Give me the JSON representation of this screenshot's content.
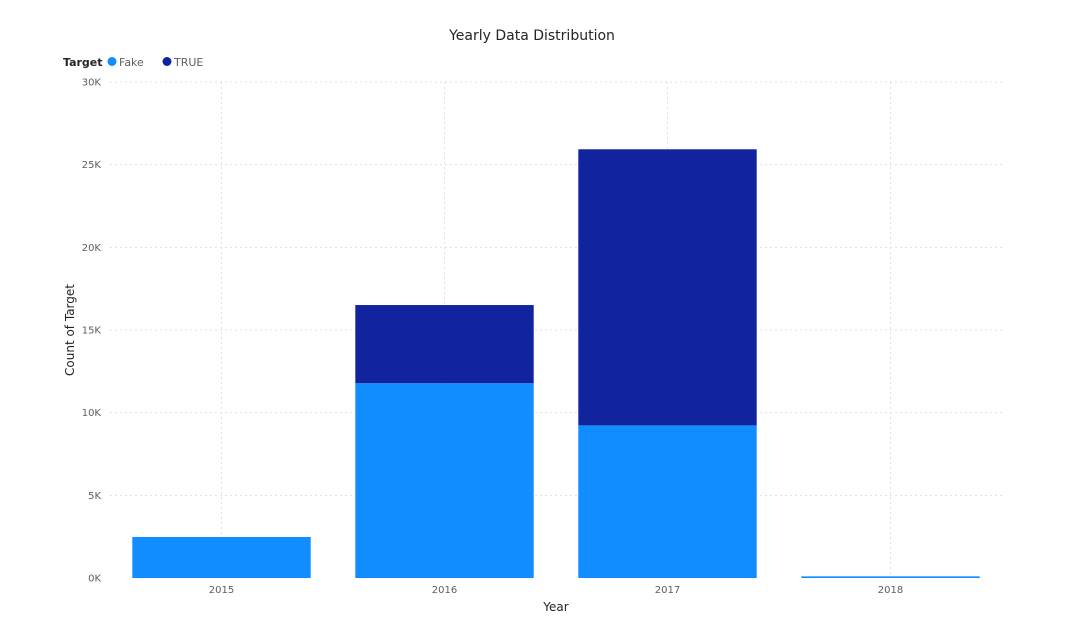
{
  "chart_data": {
    "type": "bar",
    "stacked": true,
    "title": "Yearly Data Distribution",
    "xlabel": "Year",
    "ylabel": "Count of Target",
    "legend_title": "Target",
    "legend_position": "top-left",
    "grid": true,
    "categories": [
      "2015",
      "2016",
      "2017",
      "2018"
    ],
    "ylim": [
      0,
      30000
    ],
    "yticks": [
      0,
      5000,
      10000,
      15000,
      20000,
      25000,
      30000
    ],
    "ytick_labels": [
      "0K",
      "5K",
      "10K",
      "15K",
      "20K",
      "25K",
      "30K"
    ],
    "series": [
      {
        "name": "Fake",
        "color": "#118dff",
        "values": [
          2480,
          11780,
          9230,
          100
        ]
      },
      {
        "name": "TRUE",
        "color": "#12239e",
        "values": [
          0,
          4730,
          16700,
          0
        ]
      }
    ]
  }
}
